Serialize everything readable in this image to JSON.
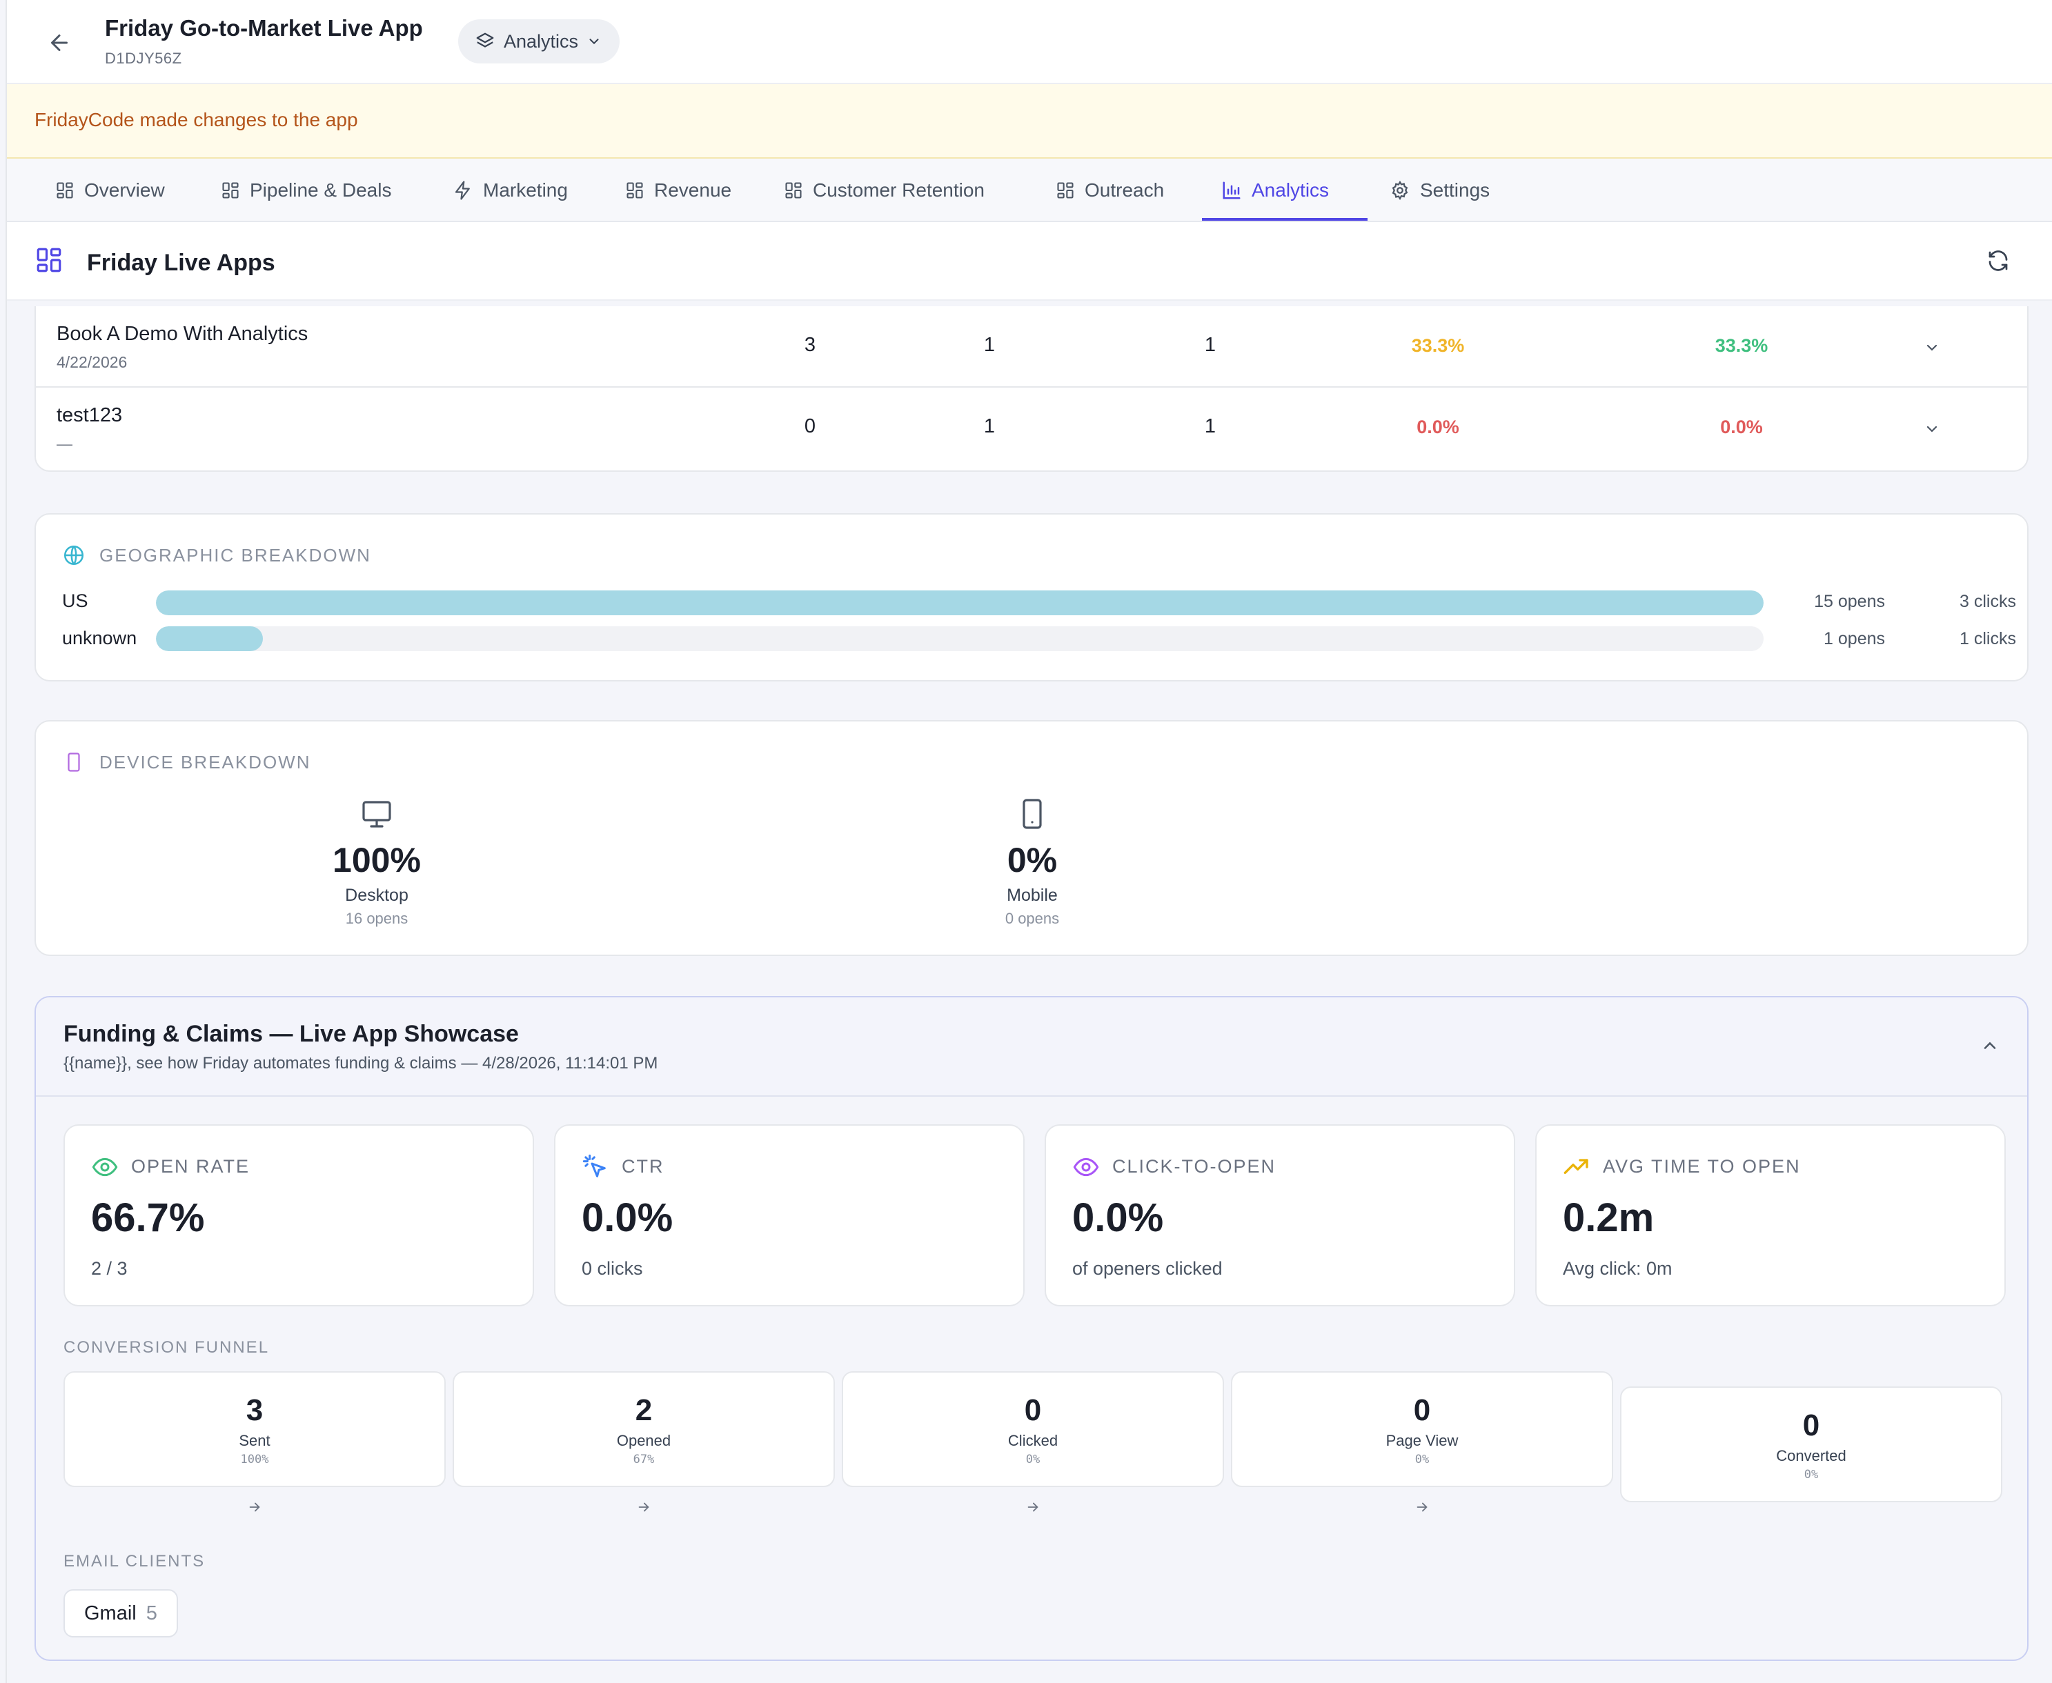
{
  "header": {
    "title": "Friday Go-to-Market Live App",
    "app_id": "D1DJY56Z",
    "view_selector": "Analytics"
  },
  "banner": {
    "text": "FridayCode made changes to the app"
  },
  "tabs": [
    {
      "label": "Overview",
      "icon": "grid-icon"
    },
    {
      "label": "Pipeline & Deals",
      "icon": "grid-icon"
    },
    {
      "label": "Marketing",
      "icon": "bolt-icon"
    },
    {
      "label": "Revenue",
      "icon": "grid-icon"
    },
    {
      "label": "Customer Retention",
      "icon": "grid-icon"
    },
    {
      "label": "Outreach",
      "icon": "grid-icon"
    },
    {
      "label": "Analytics",
      "icon": "bar-chart-icon",
      "active": true
    },
    {
      "label": "Settings",
      "icon": "gear-icon"
    }
  ],
  "section": {
    "title": "Friday Live Apps"
  },
  "table": {
    "rows": [
      {
        "name": "Book A Demo With Analytics",
        "date": "4/22/2026",
        "sent": "3",
        "opened": "1",
        "clicked": "1",
        "rate1": "33.3%",
        "rate2": "33.3%"
      },
      {
        "name": "test123",
        "date": "—",
        "sent": "0",
        "opened": "1",
        "clicked": "1",
        "rate1": "0.0%",
        "rate2": "0.0%"
      }
    ]
  },
  "geo": {
    "title": "Geographic Breakdown",
    "rows": [
      {
        "country": "US",
        "opens": "15 opens",
        "clicks": "3 clicks",
        "share": 1.0
      },
      {
        "country": "unknown",
        "opens": "1 opens",
        "clicks": "1 clicks",
        "share": 0.0667
      }
    ]
  },
  "device": {
    "title": "Device Breakdown",
    "items": [
      {
        "value": "100%",
        "label": "Desktop",
        "sub": "16 opens",
        "icon": "monitor-icon"
      },
      {
        "value": "0%",
        "label": "Mobile",
        "sub": "0 opens",
        "icon": "phone-icon"
      }
    ]
  },
  "campaign": {
    "title": "Funding & Claims — Live App Showcase",
    "subtitle": "{{name}}, see how Friday automates funding & claims — 4/28/2026, 11:14:01 PM",
    "metrics": [
      {
        "label": "Open Rate",
        "value": "66.7%",
        "sub": "2 / 3",
        "icon": "eye-icon",
        "color": "#3fbf7f"
      },
      {
        "label": "CTR",
        "value": "0.0%",
        "sub": "0 clicks",
        "icon": "cursor-click-icon",
        "color": "#3b82f6"
      },
      {
        "label": "Click-to-Open",
        "value": "0.0%",
        "sub": "of openers clicked",
        "icon": "eye-icon",
        "color": "#a855f7"
      },
      {
        "label": "Avg Time to Open",
        "value": "0.2m",
        "sub": "Avg click: 0m",
        "icon": "trend-up-icon",
        "color": "#eab308"
      }
    ],
    "funnel_label": "Conversion Funnel",
    "funnel": [
      {
        "value": "3",
        "label": "Sent",
        "pct": "100%"
      },
      {
        "value": "2",
        "label": "Opened",
        "pct": "67%"
      },
      {
        "value": "0",
        "label": "Clicked",
        "pct": "0%"
      },
      {
        "value": "0",
        "label": "Page View",
        "pct": "0%"
      },
      {
        "value": "0",
        "label": "Converted",
        "pct": "0%"
      }
    ],
    "email_clients_label": "Email Clients",
    "email_clients": [
      {
        "name": "Gmail",
        "count": "5"
      }
    ]
  },
  "colors": {
    "accent": "#4f46e5",
    "rate_warn": "#f0b429",
    "rate_good": "#3fbf7f",
    "rate_bad": "#e05a5a",
    "geo_bar": "#a5d8e5"
  }
}
